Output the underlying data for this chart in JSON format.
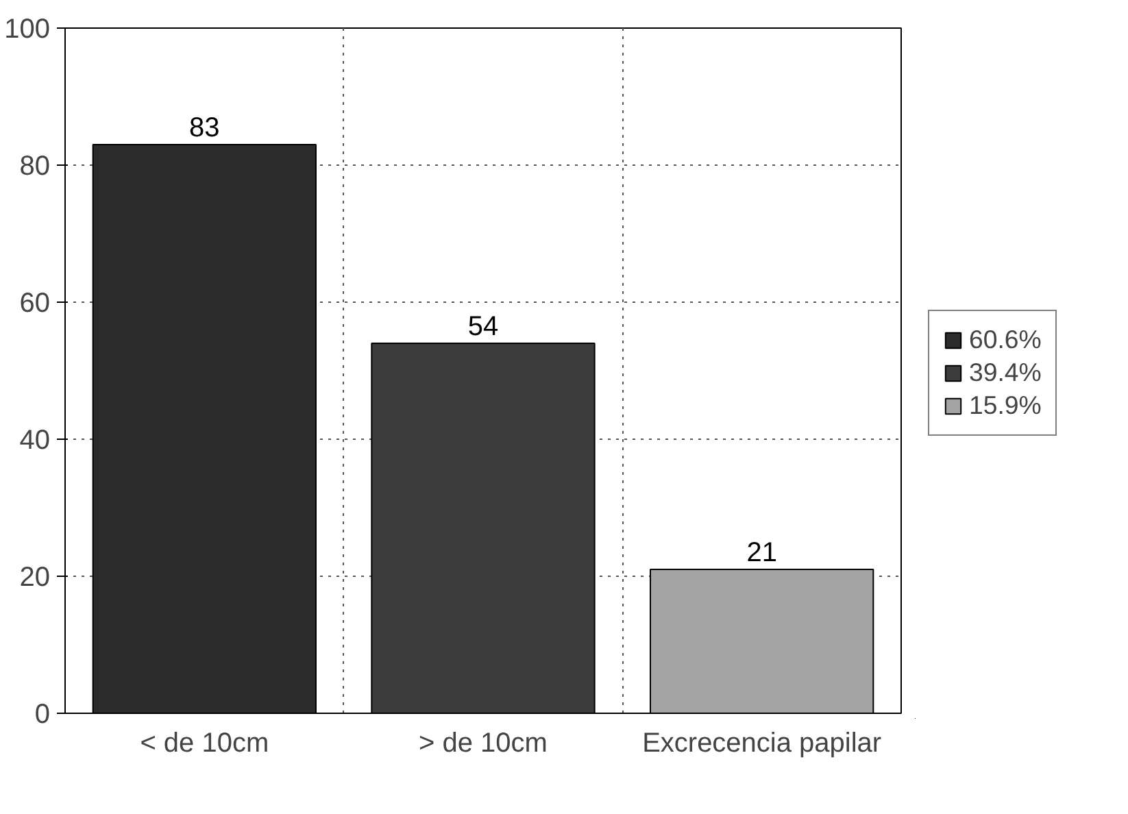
{
  "chart_data": {
    "type": "bar",
    "categories": [
      "< de 10cm",
      "> de 10cm",
      "Excrecencia papilar"
    ],
    "series": [
      {
        "name": "60.6%",
        "color": "#2b2b2b",
        "values": [
          83,
          null,
          null
        ]
      },
      {
        "name": "39.4%",
        "color": "#3c3c3c",
        "values": [
          null,
          54,
          null
        ]
      },
      {
        "name": "15.9%",
        "color": "#a3a3a3",
        "values": [
          null,
          null,
          21
        ]
      }
    ],
    "ylim": [
      0,
      100
    ],
    "yticks": [
      0,
      20,
      40,
      60,
      80,
      100
    ],
    "grid": true,
    "legend": "right",
    "data_labels": true
  }
}
